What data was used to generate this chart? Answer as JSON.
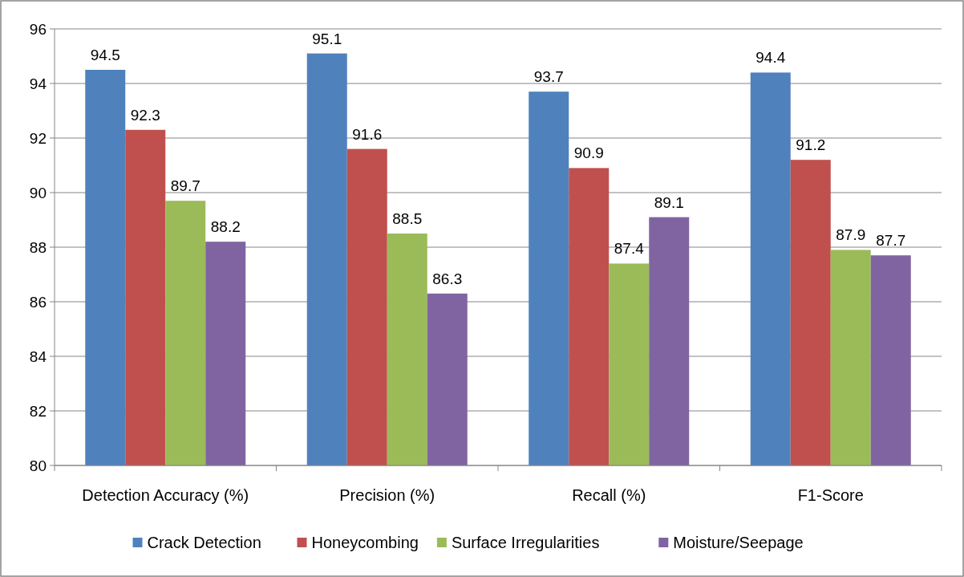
{
  "chart_data": {
    "type": "bar",
    "categories": [
      "Detection Accuracy (%)",
      "Precision (%)",
      "Recall (%)",
      "F1-Score"
    ],
    "series": [
      {
        "name": "Crack Detection",
        "color": "#4f81bd",
        "values": [
          94.5,
          95.1,
          93.7,
          94.4
        ]
      },
      {
        "name": "Honeycombing",
        "color": "#c0504d",
        "values": [
          92.3,
          91.6,
          90.9,
          91.2
        ]
      },
      {
        "name": "Surface Irregularities",
        "color": "#9bbb59",
        "values": [
          89.7,
          88.5,
          87.4,
          87.9
        ]
      },
      {
        "name": "Moisture/Seepage",
        "color": "#8064a2",
        "values": [
          88.2,
          86.3,
          89.1,
          87.7
        ]
      }
    ],
    "ylim": [
      80,
      96
    ],
    "yticks": [
      80,
      82,
      84,
      86,
      88,
      90,
      92,
      94,
      96
    ],
    "grid": "y",
    "legend": "bottom",
    "data_labels": true
  }
}
